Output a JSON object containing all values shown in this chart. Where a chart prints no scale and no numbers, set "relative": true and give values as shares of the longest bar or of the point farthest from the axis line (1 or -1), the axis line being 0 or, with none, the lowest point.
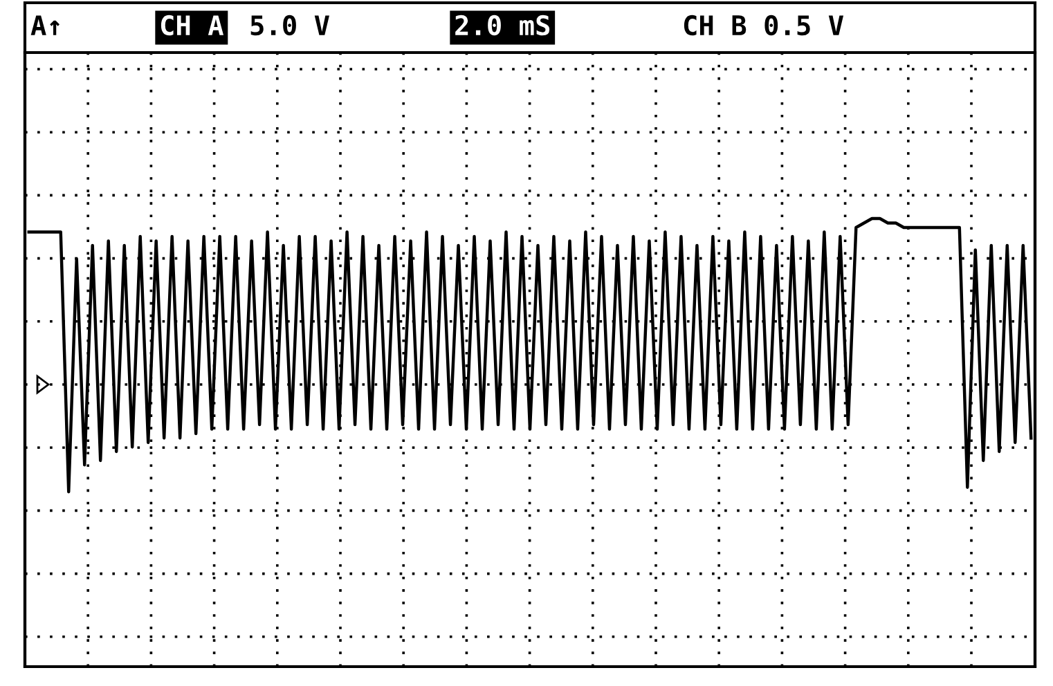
{
  "chart_data": {
    "type": "line",
    "relative": true,
    "grid": true,
    "marker": "none",
    "line_style": "solid",
    "annotations": [
      "A↑",
      "CH A",
      "5.0 V",
      "2.0 mS",
      "CH B 0.5 V"
    ],
    "categories": [
      null,
      null,
      null,
      null,
      null,
      null,
      null,
      null,
      null,
      null,
      null,
      null,
      null,
      null,
      null,
      null,
      null,
      null,
      null,
      null,
      null,
      null,
      null,
      null,
      null,
      null,
      null,
      null,
      null,
      null,
      null,
      null,
      null,
      null,
      null,
      null,
      null,
      null,
      null,
      null,
      null,
      null,
      null,
      null,
      null,
      null,
      null,
      null,
      null,
      null,
      null,
      null,
      null,
      null,
      null,
      null,
      null,
      null,
      null,
      null,
      null,
      null,
      null,
      null,
      null,
      null,
      null,
      null,
      null,
      null,
      null,
      null,
      null,
      null,
      null,
      null,
      null,
      null,
      null,
      null,
      null,
      null,
      null,
      null,
      null,
      null,
      null,
      null,
      null,
      null,
      null,
      null,
      null,
      null,
      null,
      null,
      null,
      null,
      null,
      null,
      null,
      null,
      null,
      null,
      null,
      null,
      null,
      null,
      null,
      null,
      null,
      null,
      null,
      null,
      null,
      null,
      null,
      null,
      null,
      null,
      null,
      null,
      null,
      null,
      null,
      null,
      null
    ],
    "series": [
      {
        "color": "#000000",
        "values": [
          0.97,
          0.97,
          0.97,
          0.97,
          0.97,
          0.39,
          0.91,
          0.45,
          0.94,
          0.46,
          0.95,
          0.48,
          0.94,
          0.49,
          0.96,
          0.5,
          0.95,
          0.51,
          0.96,
          0.51,
          0.95,
          0.52,
          0.96,
          0.53,
          0.96,
          0.53,
          0.96,
          0.53,
          0.95,
          0.54,
          0.97,
          0.53,
          0.94,
          0.53,
          0.96,
          0.54,
          0.96,
          0.53,
          0.95,
          0.53,
          0.97,
          0.54,
          0.96,
          0.53,
          0.94,
          0.53,
          0.96,
          0.54,
          0.95,
          0.53,
          0.97,
          0.53,
          0.96,
          0.54,
          0.94,
          0.53,
          0.96,
          0.53,
          0.95,
          0.54,
          0.97,
          0.53,
          0.96,
          0.53,
          0.94,
          0.54,
          0.96,
          0.53,
          0.95,
          0.53,
          0.97,
          0.54,
          0.96,
          0.53,
          0.94,
          0.54,
          0.96,
          0.53,
          0.95,
          0.53,
          0.97,
          0.54,
          0.96,
          0.53,
          0.94,
          0.53,
          0.96,
          0.54,
          0.95,
          0.53,
          0.97,
          0.53,
          0.96,
          0.53,
          0.94,
          0.53,
          0.96,
          0.54,
          0.95,
          0.53,
          0.97,
          0.53,
          0.96,
          0.54,
          0.98,
          0.99,
          1.0,
          1.0,
          0.99,
          0.99,
          0.98,
          0.98,
          0.98,
          0.98,
          0.98,
          0.98,
          0.98,
          0.98,
          0.4,
          0.93,
          0.46,
          0.94,
          0.48,
          0.94,
          0.5,
          0.94,
          0.51
        ]
      }
    ]
  }
}
